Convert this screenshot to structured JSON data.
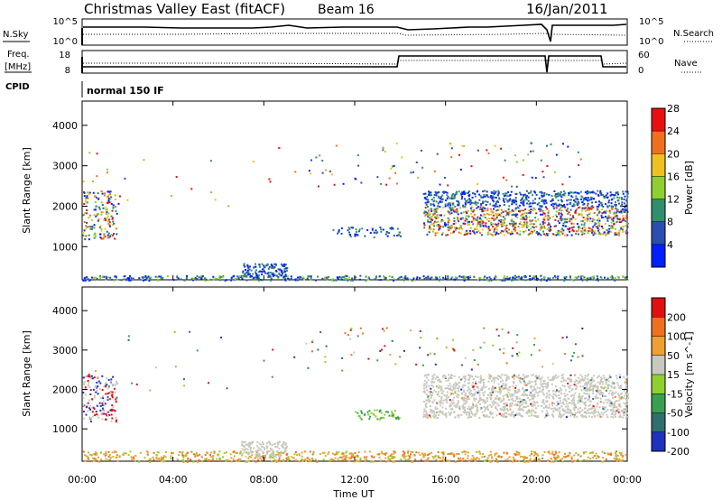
{
  "header": {
    "title": "Christmas Valley East (fitACF)",
    "beam": "Beam 16",
    "date": "16/Jan/2011"
  },
  "small_panels": {
    "nsky_label": "N.Sky",
    "nsky_ticks": [
      "10^5",
      "10^0"
    ],
    "nsearch_label": "N.Search",
    "nsearch_ticks": [
      "10^5",
      "10^0"
    ],
    "freq_label_1": "Freq.",
    "freq_label_2": "[MHz]",
    "freq_ticks": [
      "18",
      "8"
    ],
    "nave_label": "Nave",
    "nave_ticks": [
      "60",
      "0"
    ],
    "cpid_label": "CPID",
    "cpid_value": "normal 150 IF"
  },
  "chart_data": [
    {
      "type": "heatmap",
      "name": "power",
      "ylabel": "Slant Range [km]",
      "y_ticks": [
        1000,
        2000,
        3000,
        4000
      ],
      "ylim": [
        180,
        4600
      ],
      "colorbar_label": "Power [dB]",
      "colorbar_ticks": [
        "4",
        "8",
        "12",
        "16",
        "20",
        "24",
        "28"
      ],
      "colorbar_colors": [
        "#0020ff",
        "#2a4fb0",
        "#2f8f6f",
        "#8fd030",
        "#f0c020",
        "#f07020",
        "#e81010"
      ]
    },
    {
      "type": "heatmap",
      "name": "velocity",
      "ylabel": "Slant Range [km]",
      "y_ticks": [
        1000,
        2000,
        3000,
        4000
      ],
      "ylim": [
        180,
        4600
      ],
      "colorbar_label": "Velocity [m s^-1]",
      "colorbar_ticks": [
        "200",
        "100",
        "50",
        "15",
        "-15",
        "-50",
        "-100",
        "-200"
      ],
      "colorbar_colors": [
        "#2030c0",
        "#2f6f6f",
        "#39a050",
        "#8fd030",
        "#c8c8c0",
        "#f0a030",
        "#f07020",
        "#e01010"
      ]
    }
  ],
  "time_axis": {
    "ticks": [
      "00:00",
      "04:00",
      "08:00",
      "12:00",
      "16:00",
      "20:00",
      "00:00"
    ],
    "label": "Time UT"
  }
}
